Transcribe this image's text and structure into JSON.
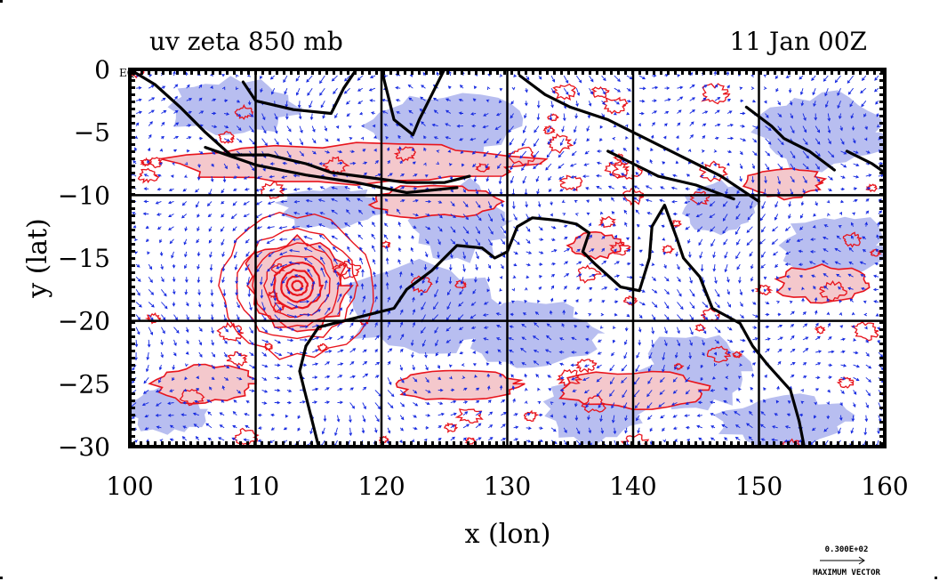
{
  "chart_data": {
    "type": "vector-contour-map",
    "title_left": "uv zeta 850 mb",
    "title_right": "11 Jan 00Z",
    "xlabel": "x (lon)",
    "ylabel": "y (lat)",
    "xlim": [
      100,
      160
    ],
    "ylim": [
      -30,
      0
    ],
    "x_ticks": [
      100,
      110,
      120,
      130,
      140,
      150,
      160
    ],
    "y_ticks": [
      0,
      -5,
      -10,
      -15,
      -20,
      -25,
      -30
    ],
    "x_tick_labels": [
      "100",
      "110",
      "120",
      "130",
      "140",
      "150",
      "160"
    ],
    "y_tick_labels": [
      "0",
      "−5",
      "−10",
      "−15",
      "−20",
      "−25",
      "−30"
    ],
    "grid_x": [
      110,
      120,
      130,
      140,
      150
    ],
    "grid_y": [
      -10,
      -20
    ],
    "corner_label": "EQ",
    "vector_key": {
      "value": "0.300E+02",
      "label": "MAXIMUM VECTOR"
    },
    "colors": {
      "positive_fill": "#f4c8cc",
      "negative_fill": "#b8bef0",
      "positive_contour": "#e8141c",
      "vector": "#1428e0",
      "coast": "#000000"
    },
    "cyclone_center": {
      "lon": 113.3,
      "lat": -17.2
    },
    "negative_regions": [
      {
        "lon": 108,
        "lat": -3,
        "rx": 5,
        "ry": 2.2
      },
      {
        "lon": 125,
        "lat": -4.5,
        "rx": 6,
        "ry": 2.5
      },
      {
        "lon": 116,
        "lat": -11,
        "rx": 4,
        "ry": 1.6
      },
      {
        "lon": 126,
        "lat": -12,
        "rx": 4,
        "ry": 3
      },
      {
        "lon": 123,
        "lat": -19,
        "rx": 6,
        "ry": 3.5
      },
      {
        "lon": 132,
        "lat": -21,
        "rx": 5,
        "ry": 2.5
      },
      {
        "lon": 137,
        "lat": -27,
        "rx": 4,
        "ry": 2.5
      },
      {
        "lon": 145,
        "lat": -24,
        "rx": 4,
        "ry": 3
      },
      {
        "lon": 155,
        "lat": -5,
        "rx": 5,
        "ry": 3
      },
      {
        "lon": 156,
        "lat": -14,
        "rx": 4,
        "ry": 2.5
      },
      {
        "lon": 152,
        "lat": -28,
        "rx": 5,
        "ry": 2
      },
      {
        "lon": 103,
        "lat": -27,
        "rx": 3,
        "ry": 2
      },
      {
        "lon": 147,
        "lat": -11,
        "rx": 3,
        "ry": 2
      }
    ],
    "positive_regions": [
      {
        "lon": 118,
        "lat": -7.5,
        "rx": 14,
        "ry": 1.5
      },
      {
        "lon": 113.3,
        "lat": -17.2,
        "rx": 4,
        "ry": 3.6
      },
      {
        "lon": 124,
        "lat": -10.5,
        "rx": 5,
        "ry": 1.2
      },
      {
        "lon": 140,
        "lat": -25.5,
        "rx": 6,
        "ry": 1.4
      },
      {
        "lon": 126,
        "lat": -25,
        "rx": 5,
        "ry": 1.2
      },
      {
        "lon": 106,
        "lat": -25,
        "rx": 4,
        "ry": 1.5
      },
      {
        "lon": 155,
        "lat": -17,
        "rx": 3.5,
        "ry": 1.4
      },
      {
        "lon": 152,
        "lat": -9,
        "rx": 3,
        "ry": 1.2
      },
      {
        "lon": 137,
        "lat": -14,
        "rx": 2,
        "ry": 1
      }
    ],
    "coastlines": [
      [
        [
          100,
          0
        ],
        [
          102,
          -1.2
        ],
        [
          104,
          -3
        ],
        [
          106,
          -5
        ],
        [
          108,
          -6.8
        ],
        [
          111,
          -6.8
        ],
        [
          114,
          -7.5
        ],
        [
          116,
          -8.2
        ],
        [
          119,
          -8.6
        ],
        [
          122,
          -9
        ],
        [
          125,
          -9
        ],
        [
          127,
          -8.5
        ]
      ],
      [
        [
          106,
          -6.2
        ],
        [
          110,
          -7.6
        ],
        [
          114,
          -8.4
        ],
        [
          118,
          -9
        ],
        [
          122,
          -9.8
        ],
        [
          126,
          -9.4
        ]
      ],
      [
        [
          109,
          -1
        ],
        [
          110,
          -2.5
        ],
        [
          113,
          -3.2
        ],
        [
          116,
          -3.5
        ],
        [
          117,
          -1.5
        ],
        [
          118,
          0
        ]
      ],
      [
        [
          120,
          0
        ],
        [
          120.5,
          -2
        ],
        [
          121,
          -4
        ],
        [
          122.5,
          -5.2
        ],
        [
          123,
          -4
        ],
        [
          124,
          -2
        ],
        [
          125,
          0
        ]
      ],
      [
        [
          131,
          -0.5
        ],
        [
          133,
          -2
        ],
        [
          135,
          -3
        ],
        [
          138,
          -4
        ],
        [
          141,
          -5.5
        ],
        [
          144,
          -7
        ],
        [
          147,
          -8.5
        ],
        [
          150,
          -10.5
        ]
      ],
      [
        [
          138,
          -6.5
        ],
        [
          140,
          -7.5
        ],
        [
          142,
          -8.5
        ],
        [
          145,
          -9.2
        ],
        [
          148,
          -10.3
        ]
      ],
      [
        [
          149,
          -3
        ],
        [
          151,
          -4.5
        ],
        [
          152,
          -5.5
        ],
        [
          154,
          -6.5
        ],
        [
          156,
          -8
        ]
      ],
      [
        [
          157,
          -6.5
        ],
        [
          159,
          -7.5
        ],
        [
          160,
          -8.2
        ]
      ],
      [
        [
          114,
          -22
        ],
        [
          115,
          -20.5
        ],
        [
          117,
          -20
        ],
        [
          119,
          -19.5
        ],
        [
          121,
          -19
        ],
        [
          122,
          -17.5
        ],
        [
          124,
          -16
        ],
        [
          126,
          -14
        ],
        [
          128,
          -14.2
        ],
        [
          129,
          -15
        ],
        [
          130,
          -14.5
        ],
        [
          130.8,
          -12.5
        ],
        [
          132,
          -11.8
        ],
        [
          134,
          -12
        ],
        [
          135.5,
          -12.3
        ],
        [
          136.5,
          -13
        ],
        [
          136,
          -14.5
        ],
        [
          137,
          -15.5
        ],
        [
          139,
          -17.3
        ],
        [
          140.5,
          -17.6
        ],
        [
          141.3,
          -15
        ],
        [
          141.5,
          -12.5
        ],
        [
          142.5,
          -10.8
        ],
        [
          143.5,
          -13.5
        ],
        [
          144,
          -15
        ],
        [
          145.3,
          -16.5
        ],
        [
          146.3,
          -19
        ],
        [
          148.5,
          -20.2
        ],
        [
          149.5,
          -22
        ],
        [
          150.7,
          -23.5
        ],
        [
          152.5,
          -25.5
        ],
        [
          153.2,
          -28
        ],
        [
          153.6,
          -30
        ]
      ],
      [
        [
          114,
          -22
        ],
        [
          113.5,
          -24
        ],
        [
          114,
          -26
        ],
        [
          114.5,
          -28
        ],
        [
          115,
          -30
        ]
      ]
    ]
  }
}
